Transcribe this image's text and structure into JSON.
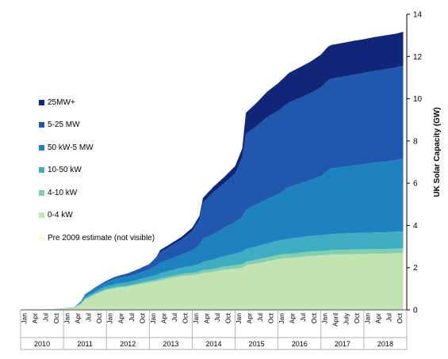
{
  "chart_data": {
    "type": "area",
    "stacked": true,
    "ylabel": "UK Solar Capacity (GW)",
    "ylim": [
      0,
      14
    ],
    "yticks": [
      "0",
      "2",
      "4",
      "6",
      "8",
      "10",
      "12",
      "14"
    ],
    "y_axis_side": "right",
    "grid": false,
    "legend_position": "left",
    "x_month_labels": [
      "Jan",
      "Apr",
      "Jul",
      "Oct"
    ],
    "x_month_labels_2017": [
      "Jan",
      "April",
      "July",
      "Oct"
    ],
    "x_years": [
      "2010",
      "2011",
      "2012",
      "2013",
      "2014",
      "2015",
      "2016",
      "2017",
      "2018"
    ],
    "x": [
      "2010-01",
      "2010-04",
      "2010-07",
      "2010-10",
      "2011-01",
      "2011-04",
      "2011-06",
      "2011-07",
      "2011-10",
      "2012-01",
      "2012-03",
      "2012-04",
      "2012-07",
      "2012-10",
      "2013-01",
      "2013-03",
      "2013-04",
      "2013-07",
      "2013-10",
      "2014-01",
      "2014-03",
      "2014-04",
      "2014-07",
      "2014-10",
      "2015-01",
      "2015-03",
      "2015-04",
      "2015-07",
      "2015-10",
      "2016-01",
      "2016-03",
      "2016-04",
      "2016-07",
      "2016-10",
      "2017-01",
      "2017-03",
      "2017-04",
      "2017-07",
      "2017-10",
      "2018-01",
      "2018-04",
      "2018-07",
      "2018-10",
      "2018-12"
    ],
    "series": [
      {
        "name": "0-4 kW",
        "color": "#c2e3b2",
        "values": [
          0.0,
          0.02,
          0.03,
          0.04,
          0.06,
          0.1,
          0.3,
          0.5,
          0.75,
          0.95,
          1.0,
          1.05,
          1.1,
          1.2,
          1.3,
          1.35,
          1.4,
          1.5,
          1.6,
          1.65,
          1.7,
          1.75,
          1.8,
          1.9,
          1.95,
          2.0,
          2.1,
          2.2,
          2.3,
          2.4,
          2.45,
          2.45,
          2.5,
          2.55,
          2.58,
          2.6,
          2.62,
          2.63,
          2.64,
          2.65,
          2.66,
          2.67,
          2.68,
          2.7
        ]
      },
      {
        "name": "4-10 kW",
        "color": "#82cfb0",
        "values": [
          0.0,
          0.0,
          0.0,
          0.0,
          0.0,
          0.0,
          0.01,
          0.02,
          0.03,
          0.04,
          0.05,
          0.05,
          0.05,
          0.06,
          0.07,
          0.08,
          0.08,
          0.09,
          0.1,
          0.11,
          0.12,
          0.13,
          0.14,
          0.15,
          0.16,
          0.17,
          0.18,
          0.18,
          0.19,
          0.2,
          0.2,
          0.2,
          0.2,
          0.21,
          0.21,
          0.21,
          0.22,
          0.22,
          0.22,
          0.22,
          0.22,
          0.22,
          0.22,
          0.22
        ]
      },
      {
        "name": "10-50 kW",
        "color": "#3fadc4",
        "values": [
          0.0,
          0.0,
          0.0,
          0.0,
          0.01,
          0.01,
          0.05,
          0.08,
          0.1,
          0.12,
          0.14,
          0.15,
          0.16,
          0.18,
          0.2,
          0.22,
          0.25,
          0.28,
          0.3,
          0.32,
          0.35,
          0.4,
          0.45,
          0.5,
          0.55,
          0.58,
          0.6,
          0.63,
          0.65,
          0.68,
          0.7,
          0.72,
          0.73,
          0.74,
          0.75,
          0.76,
          0.76,
          0.77,
          0.78,
          0.78,
          0.79,
          0.79,
          0.8,
          0.8
        ]
      },
      {
        "name": "50 kW-5 MW",
        "color": "#1d82be",
        "values": [
          0.0,
          0.0,
          0.0,
          0.0,
          0.0,
          0.01,
          0.05,
          0.1,
          0.15,
          0.2,
          0.25,
          0.25,
          0.27,
          0.3,
          0.35,
          0.45,
          0.5,
          0.55,
          0.62,
          0.75,
          0.9,
          1.1,
          1.2,
          1.35,
          1.5,
          1.65,
          1.85,
          2.0,
          2.1,
          2.2,
          2.35,
          2.45,
          2.55,
          2.65,
          2.8,
          3.05,
          3.1,
          3.15,
          3.2,
          3.25,
          3.3,
          3.35,
          3.4,
          3.45
        ]
      },
      {
        "name": "5-25 MW",
        "color": "#2058ad",
        "values": [
          0.0,
          0.0,
          0.0,
          0.0,
          0.0,
          0.0,
          0.02,
          0.03,
          0.05,
          0.07,
          0.1,
          0.1,
          0.15,
          0.2,
          0.25,
          0.35,
          0.5,
          0.6,
          0.7,
          0.9,
          1.2,
          1.7,
          2.0,
          2.1,
          2.3,
          2.8,
          3.6,
          3.7,
          3.9,
          3.95,
          4.0,
          4.0,
          4.05,
          4.1,
          4.2,
          4.25,
          4.25,
          4.27,
          4.3,
          4.32,
          4.35,
          4.37,
          4.38,
          4.4
        ]
      },
      {
        "name": "25MW+",
        "color": "#102678",
        "values": [
          0.0,
          0.0,
          0.0,
          0.0,
          0.0,
          0.0,
          0.0,
          0.0,
          0.0,
          0.0,
          0.0,
          0.0,
          0.0,
          0.0,
          0.0,
          0.05,
          0.1,
          0.12,
          0.14,
          0.16,
          0.18,
          0.22,
          0.25,
          0.3,
          0.35,
          0.45,
          1.0,
          1.1,
          1.2,
          1.3,
          1.35,
          1.4,
          1.45,
          1.5,
          1.55,
          1.6,
          1.6,
          1.6,
          1.6,
          1.6,
          1.6,
          1.6,
          1.6,
          1.6
        ]
      },
      {
        "name": "Pre 2009 estimate (not visible)",
        "color": "#fffccd",
        "values": [
          0.02,
          0.02,
          0.02,
          0.02,
          0.02,
          0.02,
          0.02,
          0.02,
          0.02,
          0.02,
          0.02,
          0.02,
          0.02,
          0.02,
          0.02,
          0.02,
          0.02,
          0.02,
          0.02,
          0.02,
          0.02,
          0.02,
          0.02,
          0.02,
          0.02,
          0.02,
          0.02,
          0.02,
          0.02,
          0.02,
          0.02,
          0.02,
          0.02,
          0.02,
          0.02,
          0.02,
          0.02,
          0.02,
          0.02,
          0.02,
          0.02,
          0.02,
          0.02,
          0.02
        ]
      }
    ],
    "legend_order": [
      "25MW+",
      "5-25 MW",
      "50 kW-5 MW",
      "10-50 kW",
      "4-10 kW",
      "0-4 kW",
      "Pre 2009 estimate (not visible)"
    ]
  }
}
